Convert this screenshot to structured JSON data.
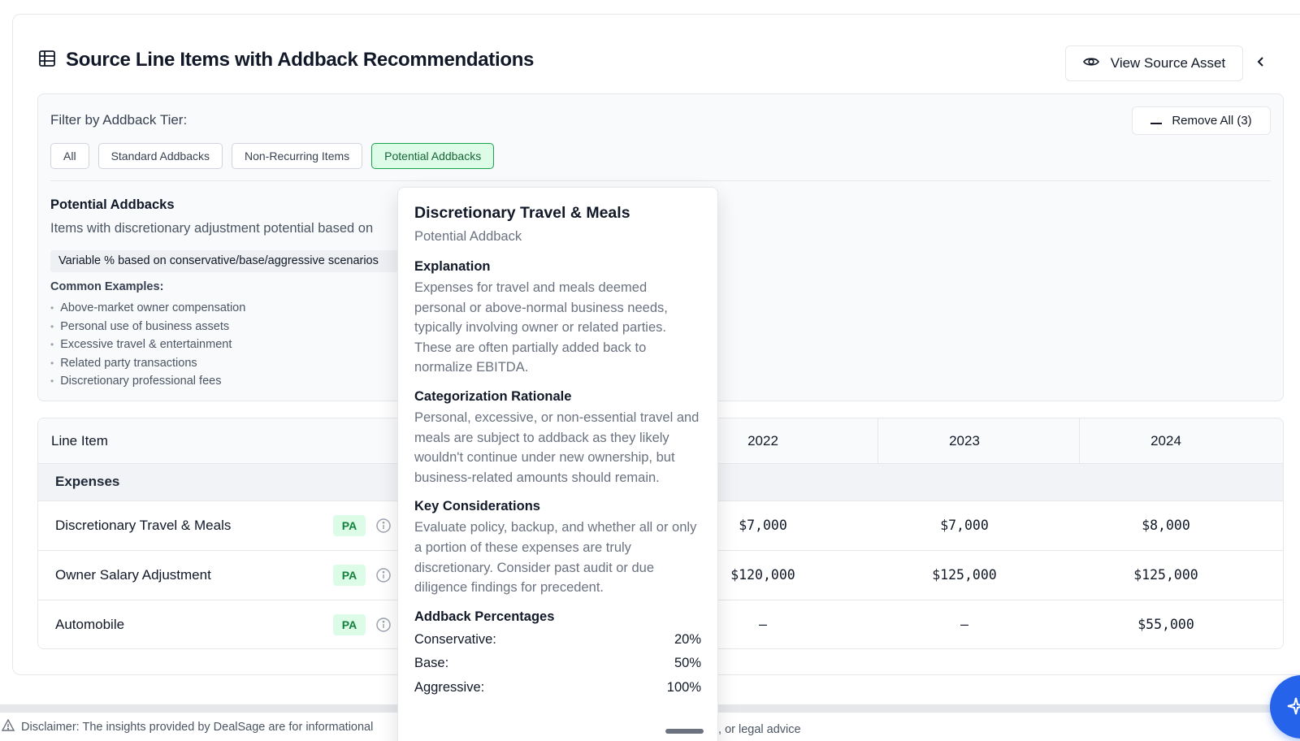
{
  "header": {
    "title": "Source Line Items with Addback Recommendations",
    "view_source_label": "View Source Asset"
  },
  "filter": {
    "label": "Filter by Addback Tier:",
    "remove_all_label": "Remove All (3)",
    "chips": [
      "All",
      "Standard Addbacks",
      "Non-Recurring Items",
      "Potential Addbacks"
    ],
    "active_chip": "Potential Addbacks"
  },
  "tier_info": {
    "title": "Potential Addbacks",
    "description": "Items with discretionary adjustment potential based on",
    "note": "Variable % based on conservative/base/aggressive scenarios",
    "examples_title": "Common Examples:",
    "examples": [
      "Above-market owner compensation",
      "Personal use of business assets",
      "Excessive travel & entertainment",
      "Related party transactions",
      "Discretionary professional fees"
    ]
  },
  "table": {
    "line_item_header": "Line Item",
    "years": [
      "2022",
      "2023",
      "2024"
    ],
    "group_label": "Expenses",
    "rows": [
      {
        "name": "Discretionary Travel & Meals",
        "badge": "PA",
        "values": [
          "$7,000",
          "$7,000",
          "$8,000"
        ]
      },
      {
        "name": "Owner Salary Adjustment",
        "badge": "PA",
        "values": [
          "$120,000",
          "$125,000",
          "$125,000"
        ]
      },
      {
        "name": "Automobile",
        "badge": "PA",
        "values": [
          "–",
          "–",
          "$55,000"
        ]
      }
    ]
  },
  "popover": {
    "title": "Discretionary Travel & Meals",
    "subtitle": "Potential Addback",
    "explanation_heading": "Explanation",
    "explanation": "Expenses for travel and meals deemed personal or above-normal business needs, typically involving owner or related parties. These are often partially added back to normalize EBITDA.",
    "rationale_heading": "Categorization Rationale",
    "rationale": "Personal, excessive, or non-essential travel and meals are subject to addback as they likely wouldn't continue under new ownership, but business-related amounts should remain.",
    "considerations_heading": "Key Considerations",
    "considerations": "Evaluate policy, backup, and whether all or only a portion of these expenses are truly discretionary. Consider past audit or due diligence findings for precedent.",
    "percentages_heading": "Addback Percentages",
    "conservative_label": "Conservative:",
    "conservative_value": "20%",
    "base_label": "Base:",
    "base_value": "50%",
    "aggressive_label": "Aggressive:",
    "aggressive_value": "100%"
  },
  "footer": {
    "disclaimer_start": "Disclaimer: The insights provided by DealSage are for informational",
    "disclaimer_end": "t, or legal advice"
  },
  "colors": {
    "accent_green": "#16a34a",
    "badge_bg": "#dcfce7",
    "fab_blue": "#2563eb"
  }
}
